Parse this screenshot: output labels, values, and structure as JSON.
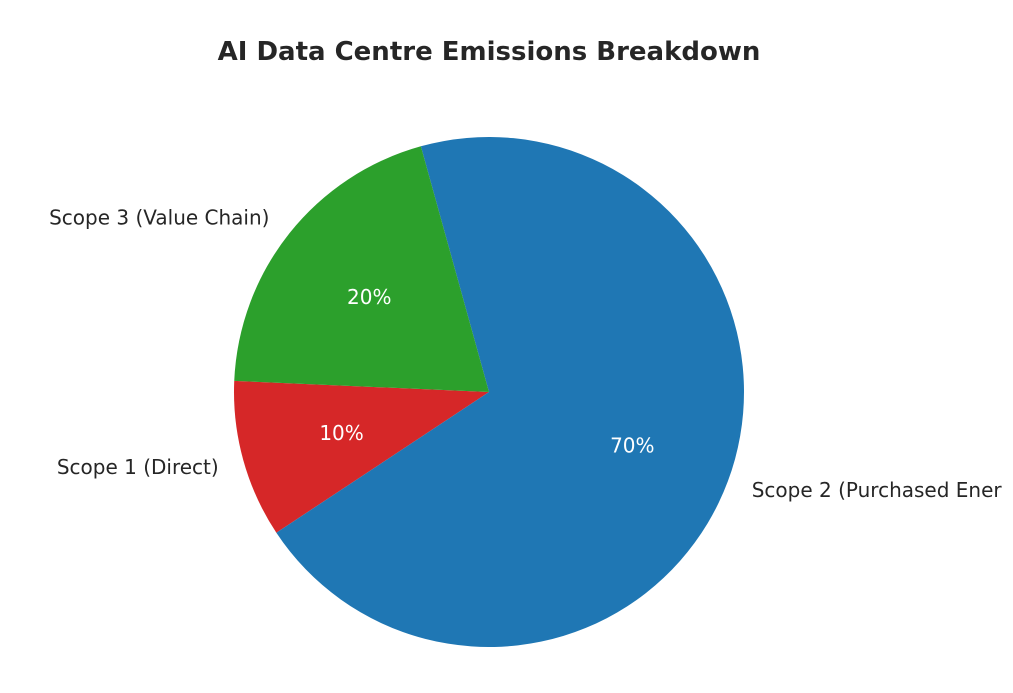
{
  "chart_data": {
    "type": "pie",
    "title": "AI Data Centre Emissions Breakdown",
    "slices": [
      {
        "label": "Scope 1 (Direct)",
        "value": 10,
        "pct_label": "10%",
        "color": "#d62728"
      },
      {
        "label": "Scope 2 (Purchased Ener",
        "value": 70,
        "pct_label": "70%",
        "color": "#1f77b4"
      },
      {
        "label": "Scope 3 (Value Chain)",
        "value": 20,
        "pct_label": "20%",
        "color": "#2ca02c"
      }
    ],
    "legend": "none"
  }
}
